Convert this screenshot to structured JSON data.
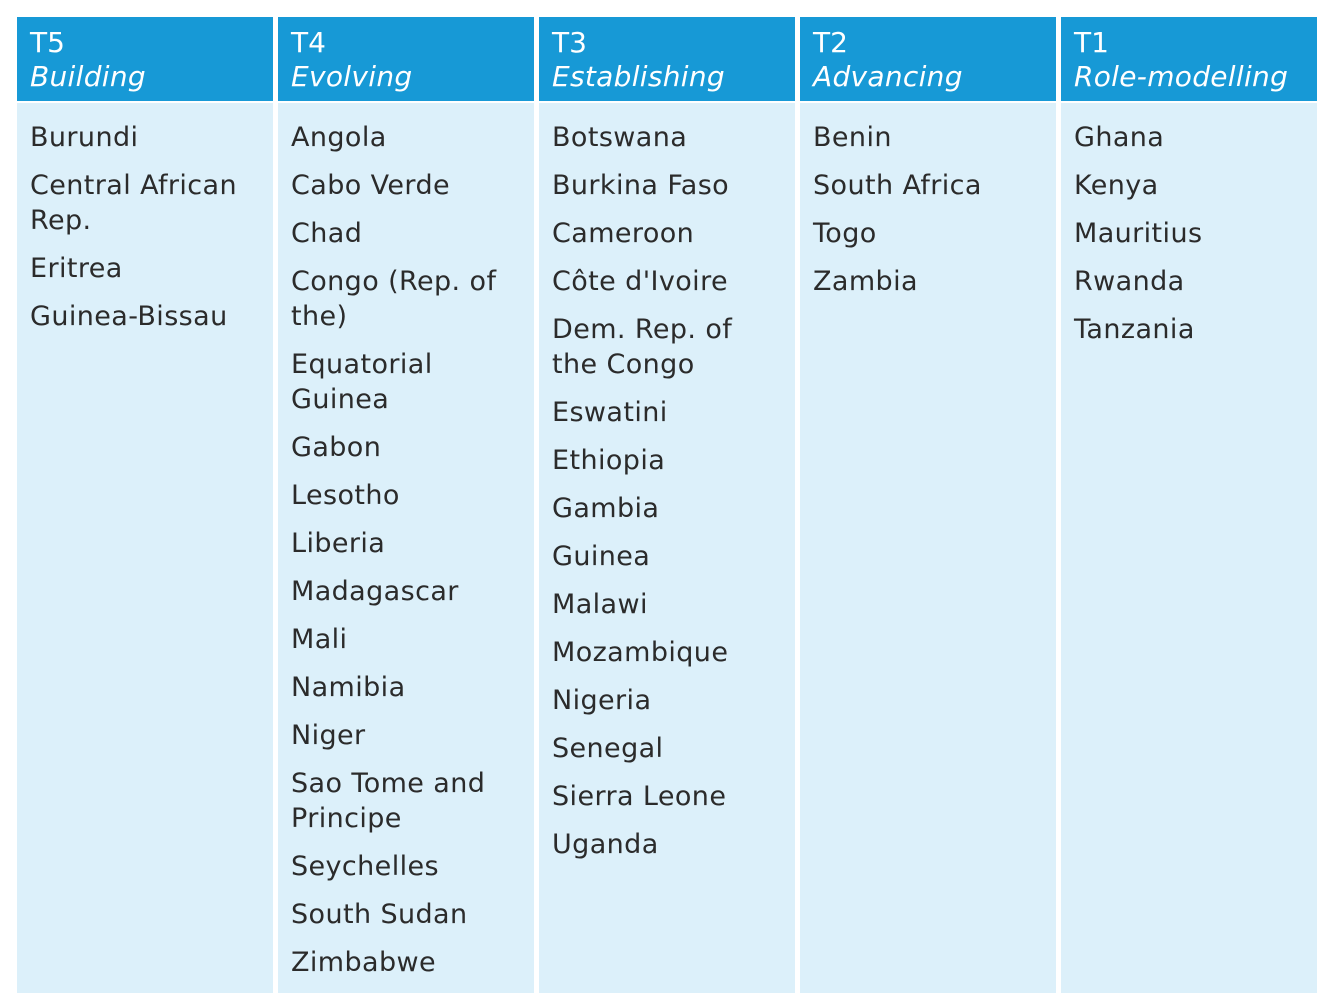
{
  "columns": [
    {
      "tier": "T5",
      "name": "Building",
      "countries": [
        "Burundi",
        "Central African Rep.",
        "Eritrea",
        "Guinea-Bissau"
      ]
    },
    {
      "tier": "T4",
      "name": "Evolving",
      "countries": [
        "Angola",
        "Cabo Verde",
        "Chad",
        "Congo (Rep. of the)",
        "Equatorial Guinea",
        "Gabon",
        "Lesotho",
        "Liberia",
        "Madagascar",
        "Mali",
        "Namibia",
        "Niger",
        "Sao Tome and Principe",
        "Seychelles",
        "South Sudan",
        "Zimbabwe"
      ]
    },
    {
      "tier": "T3",
      "name": "Establishing",
      "countries": [
        "Botswana",
        "Burkina Faso",
        "Cameroon",
        "Côte d'Ivoire",
        "Dem. Rep. of the Congo",
        "Eswatini",
        "Ethiopia",
        "Gambia",
        "Guinea",
        "Malawi",
        "Mozambique",
        "Nigeria",
        "Senegal",
        "Sierra Leone",
        "Uganda"
      ]
    },
    {
      "tier": "T2",
      "name": "Advancing",
      "countries": [
        "Benin",
        "South Africa",
        "Togo",
        "Zambia"
      ]
    },
    {
      "tier": "T1",
      "name": "Role-modelling",
      "countries": [
        "Ghana",
        "Kenya",
        "Mauritius",
        "Rwanda",
        "Tanzania"
      ]
    }
  ],
  "colors": {
    "header_bg": "#1799d6",
    "body_bg": "#dcf0fa",
    "header_text": "#ffffff",
    "body_text": "#2b2b2b"
  }
}
